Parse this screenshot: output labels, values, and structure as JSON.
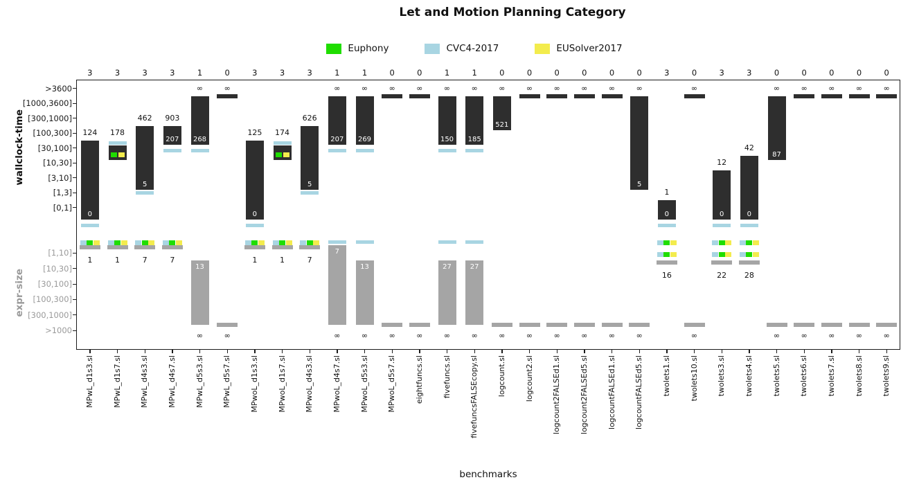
{
  "chart_data": {
    "type": "bar",
    "title": "Let and Motion Planning Category",
    "x_label": "benchmarks",
    "wall_axis_label": "wallclock-time",
    "size_axis_label": "expr-size",
    "legend": [
      {
        "label": "Euphony",
        "color": "#1fdd00"
      },
      {
        "label": "CVC4-2017",
        "color": "#a8d5e2"
      },
      {
        "label": "EUSolver2017",
        "color": "#f3ec4d"
      }
    ],
    "colors": {
      "wall_bar": "#2e2e2e",
      "size_bar": "#a5a5a5",
      "background": "#ffffff",
      "axis": "#1a1a1a"
    },
    "wall_rows": [
      ">3600",
      "[1000,3600]",
      "[300,1000]",
      "[100,300]",
      "[30,100]",
      "[10,30]",
      "[3,10]",
      "[1,3]",
      "[0,1]"
    ],
    "size_rows": [
      "[1,10]",
      "[10,30]",
      "[30,100]",
      "[100,300]",
      "[300,1000]",
      ">1000"
    ],
    "benchmarks": [
      {
        "name": "MPwL_d1s3.sl",
        "count": "3",
        "wall": {
          "above": "124",
          "bar": [
            3,
            8
          ],
          "inner": "0",
          "cyan_below": true
        },
        "gap": {
          "triplet": true
        },
        "size": {
          "dash": 0,
          "label": "1"
        }
      },
      {
        "name": "MPwL_d1s7.sl",
        "count": "3",
        "wall": {
          "above": "178",
          "bar": [
            3,
            4
          ],
          "cyan_above": true,
          "gy_inside": true
        },
        "gap": {
          "triplet": true
        },
        "size": {
          "dash": 0,
          "label": "1"
        }
      },
      {
        "name": "MPwL_d4s3.sl",
        "count": "3",
        "wall": {
          "above": "462",
          "bar": [
            2,
            6
          ],
          "inner": "5",
          "cyan_row": 7
        },
        "gap": {
          "triplet": true
        },
        "size": {
          "dash": 0,
          "label": "7"
        }
      },
      {
        "name": "MPwL_d4s7.sl",
        "count": "3",
        "wall": {
          "above": "903",
          "bar": [
            2,
            3
          ],
          "inner": "207",
          "cyan_below": true
        },
        "gap": {
          "triplet": true
        },
        "size": {
          "dash": 0,
          "label": "7"
        }
      },
      {
        "name": "MPwL_d5s3.sl",
        "count": "1",
        "wall": {
          "above": "∞",
          "bar": [
            0,
            3
          ],
          "inner": "268",
          "cyan_below": true
        },
        "gap": {},
        "size": {
          "bar": 1,
          "inner": "13",
          "label": "∞"
        }
      },
      {
        "name": "MPwL_d5s7.sl",
        "count": "0",
        "wall": {
          "above": "∞"
        },
        "gap": {},
        "size": {
          "label": "∞"
        }
      },
      {
        "name": "MPwoL_d1s3.sl",
        "count": "3",
        "wall": {
          "above": "125",
          "bar": [
            3,
            8
          ],
          "inner": "0",
          "cyan_below": true
        },
        "gap": {
          "triplet": true
        },
        "size": {
          "dash": 0,
          "label": "1"
        }
      },
      {
        "name": "MPwoL_d1s7.sl",
        "count": "3",
        "wall": {
          "above": "174",
          "bar": [
            3,
            4
          ],
          "cyan_above": true,
          "gy_inside": true
        },
        "gap": {
          "triplet": true
        },
        "size": {
          "dash": 0,
          "label": "1"
        }
      },
      {
        "name": "MPwoL_d4s3.sl",
        "count": "3",
        "wall": {
          "above": "626",
          "bar": [
            2,
            6
          ],
          "inner": "5",
          "cyan_row": 7
        },
        "gap": {
          "triplet": true
        },
        "size": {
          "dash": 0,
          "label": "7"
        }
      },
      {
        "name": "MPwoL_d4s7.sl",
        "count": "1",
        "wall": {
          "above": "∞",
          "bar": [
            0,
            3
          ],
          "inner": "207",
          "cyan_below": true
        },
        "gap": {
          "cyan": true
        },
        "size": {
          "bar": 0,
          "inner": "7",
          "label": "∞"
        }
      },
      {
        "name": "MPwoL_d5s3.sl",
        "count": "1",
        "wall": {
          "above": "∞",
          "bar": [
            0,
            3
          ],
          "inner": "269",
          "cyan_below": true
        },
        "gap": {
          "cyan": true
        },
        "size": {
          "bar": 1,
          "inner": "13",
          "label": "∞"
        }
      },
      {
        "name": "MPwoL_d5s7.sl",
        "count": "0",
        "wall": {
          "above": "∞"
        },
        "gap": {},
        "size": {
          "label": "∞"
        }
      },
      {
        "name": "eightfuncs.sl",
        "count": "0",
        "wall": {
          "above": "∞"
        },
        "gap": {},
        "size": {
          "label": "∞"
        }
      },
      {
        "name": "fivefuncs.sl",
        "count": "1",
        "wall": {
          "above": "∞",
          "bar": [
            0,
            3
          ],
          "inner": "150",
          "cyan_below": true
        },
        "gap": {
          "cyan": true
        },
        "size": {
          "bar": 1,
          "inner": "27",
          "label": "∞"
        }
      },
      {
        "name": "fivefuncsFALSEcopy.sl",
        "count": "1",
        "wall": {
          "above": "∞",
          "bar": [
            0,
            3
          ],
          "inner": "185",
          "cyan_below": true
        },
        "gap": {
          "cyan": true
        },
        "size": {
          "bar": 1,
          "inner": "27",
          "label": "∞"
        }
      },
      {
        "name": "logcount.sl",
        "count": "0",
        "wall": {
          "above": "∞",
          "bar": [
            0,
            2
          ],
          "inner": "521"
        },
        "gap": {},
        "size": {
          "label": "∞"
        }
      },
      {
        "name": "logcount2.sl",
        "count": "0",
        "wall": {
          "above": "∞"
        },
        "gap": {},
        "size": {
          "label": "∞"
        }
      },
      {
        "name": "logcount2FALSEd1.sl",
        "count": "0",
        "wall": {
          "above": "∞"
        },
        "gap": {},
        "size": {
          "label": "∞"
        }
      },
      {
        "name": "logcount2FALSEd5.sl",
        "count": "0",
        "wall": {
          "above": "∞"
        },
        "gap": {},
        "size": {
          "label": "∞"
        }
      },
      {
        "name": "logcountFALSEd1.sl",
        "count": "0",
        "wall": {
          "above": "∞"
        },
        "gap": {},
        "size": {
          "label": "∞"
        }
      },
      {
        "name": "logcountFALSEd5.sl",
        "count": "0",
        "wall": {
          "above": "∞",
          "bar": [
            0,
            6
          ],
          "inner": "5"
        },
        "gap": {},
        "size": {
          "label": "∞"
        }
      },
      {
        "name": "twolets1.sl",
        "count": "3",
        "wall": {
          "above": "1",
          "bar": [
            7,
            8
          ],
          "inner": "0",
          "cyan_below": true
        },
        "gap": {
          "triplet": true
        },
        "size": {
          "dash": 1,
          "label": "16",
          "triplet": true
        }
      },
      {
        "name": "twolets10.sl",
        "count": "0",
        "wall": {
          "above": "∞"
        },
        "gap": {},
        "size": {
          "label": "∞"
        }
      },
      {
        "name": "twolets3.sl",
        "count": "3",
        "wall": {
          "above": "12",
          "bar": [
            5,
            8
          ],
          "inner": "0",
          "cyan_below": true
        },
        "gap": {
          "triplet": true
        },
        "size": {
          "dash": 1,
          "label": "22",
          "triplet": true
        }
      },
      {
        "name": "twolets4.sl",
        "count": "3",
        "wall": {
          "above": "42",
          "bar": [
            4,
            8
          ],
          "inner": "0",
          "cyan_below": true
        },
        "gap": {
          "triplet": true
        },
        "size": {
          "dash": 1,
          "label": "28",
          "triplet": true
        }
      },
      {
        "name": "twolets5.sl",
        "count": "0",
        "wall": {
          "above": "∞",
          "bar": [
            0,
            4
          ],
          "inner": "87"
        },
        "gap": {},
        "size": {
          "label": "∞"
        }
      },
      {
        "name": "twolets6.sl",
        "count": "0",
        "wall": {
          "above": "∞"
        },
        "gap": {},
        "size": {
          "label": "∞"
        }
      },
      {
        "name": "twolets7.sl",
        "count": "0",
        "wall": {
          "above": "∞"
        },
        "gap": {},
        "size": {
          "label": "∞"
        }
      },
      {
        "name": "twolets8.sl",
        "count": "0",
        "wall": {
          "above": "∞"
        },
        "gap": {},
        "size": {
          "label": "∞"
        }
      },
      {
        "name": "twolets9.sl",
        "count": "0",
        "wall": {
          "above": "∞"
        },
        "gap": {},
        "size": {
          "label": "∞"
        }
      }
    ]
  }
}
